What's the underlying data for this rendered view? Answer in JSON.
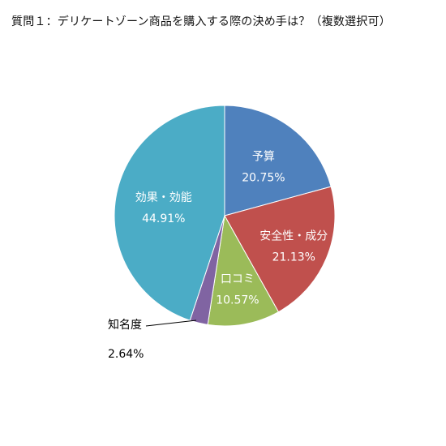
{
  "chart_data": {
    "type": "pie",
    "title": "質問１：デリケートゾーン商品を購入する際の決め手は？（複数選択可）",
    "start_angle_deg": 0,
    "direction": "clockwise",
    "slices": [
      {
        "name": "予算",
        "value": 20.75,
        "label": "20.75%",
        "color": "#4f81bd"
      },
      {
        "name": "安全性・成分",
        "value": 21.13,
        "label": "21.13%",
        "color": "#c0504d"
      },
      {
        "name": "口コミ",
        "value": 10.57,
        "label": "10.57%",
        "color": "#9bbb59"
      },
      {
        "name": "知名度",
        "value": 2.64,
        "label": "2.64%",
        "color": "#8064a2"
      },
      {
        "name": "効果・効能",
        "value": 44.91,
        "label": "44.91%",
        "color": "#4bacc6"
      }
    ]
  }
}
